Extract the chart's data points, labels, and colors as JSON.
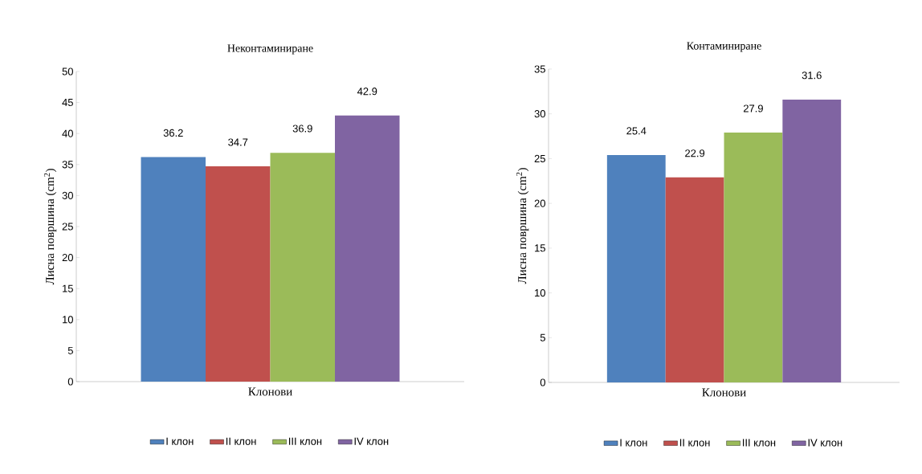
{
  "chart_data": [
    {
      "type": "bar",
      "title": "Неконтаминиране",
      "xlabel": "Клонови",
      "ylabel": "Лисна површина (cm$^{2}$)",
      "categories": [
        null
      ],
      "series": [
        {
          "name": "I клон",
          "color": "#4f81bd",
          "values": [
            36.2
          ]
        },
        {
          "name": "II клон",
          "color": "#c0504d",
          "values": [
            34.7
          ]
        },
        {
          "name": "III клон",
          "color": "#9bbb59",
          "values": [
            36.9
          ]
        },
        {
          "name": "IV клон",
          "color": "#8064a2",
          "values": [
            42.9
          ]
        }
      ],
      "ylim": [
        0,
        50
      ],
      "yticks": [
        0,
        5,
        10,
        15,
        20,
        25,
        30,
        35,
        40,
        45,
        50
      ],
      "data_labels": true,
      "legend": "bottom"
    },
    {
      "type": "bar",
      "title": "Контаминиране",
      "xlabel": "Клонови",
      "ylabel": "Лисна површина (cm$^{2}$)",
      "categories": [
        null
      ],
      "series": [
        {
          "name": "I клон",
          "color": "#4f81bd",
          "values": [
            25.4
          ]
        },
        {
          "name": "II клон",
          "color": "#c0504d",
          "values": [
            22.9
          ]
        },
        {
          "name": "III клон",
          "color": "#9bbb59",
          "values": [
            27.9
          ]
        },
        {
          "name": "IV клон",
          "color": "#8064a2",
          "values": [
            31.6
          ]
        }
      ],
      "ylim": [
        0,
        35
      ],
      "yticks": [
        0,
        5,
        10,
        15,
        20,
        25,
        30,
        35
      ],
      "data_labels": true,
      "legend": "bottom"
    }
  ]
}
